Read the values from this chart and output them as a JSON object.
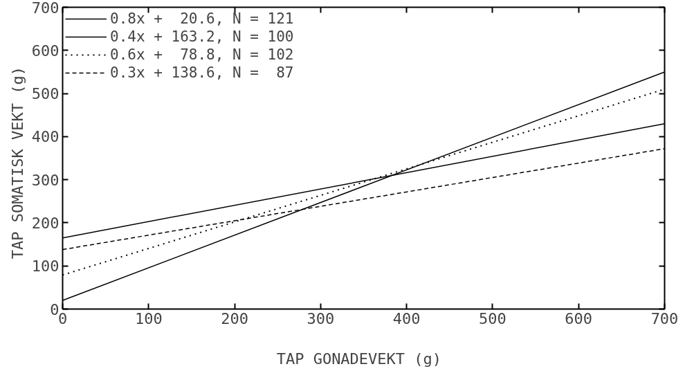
{
  "chart_data": {
    "type": "line",
    "xlabel": "TAP GONADEVEKT  (g)",
    "ylabel": "TAP SOMATISK VEKT  (g)",
    "x": [
      0,
      700
    ],
    "series": [
      {
        "name": "0.8x +  20.6, N = 121",
        "color": "#000000",
        "values": [
          20,
          550
        ],
        "line_style": "solid"
      },
      {
        "name": "0.4x + 163.2, N = 100",
        "color": "#000000",
        "values": [
          165,
          430
        ],
        "line_style": "solid"
      },
      {
        "name": "0.6x +  78.8, N = 102",
        "color": "#000000",
        "values": [
          79,
          510
        ],
        "line_style": "dotted"
      },
      {
        "name": "0.3x + 138.6, N =  87",
        "color": "#000000",
        "values": [
          138,
          372
        ],
        "line_style": "dashed"
      }
    ],
    "xlim": [
      0,
      700
    ],
    "ylim": [
      0,
      700
    ],
    "xticks": [
      0,
      100,
      200,
      300,
      400,
      500,
      600,
      700
    ],
    "yticks": [
      0,
      100,
      200,
      300,
      400,
      500,
      600,
      700
    ],
    "grid": false,
    "legend": "top left",
    "marker": "none"
  }
}
